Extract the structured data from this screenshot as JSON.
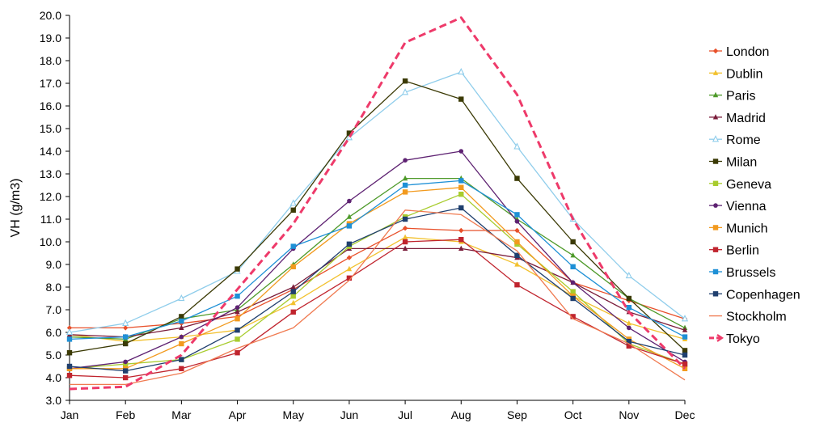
{
  "chart_data": {
    "type": "line",
    "title": "",
    "xlabel": "",
    "ylabel": "VH   (g/m3)",
    "ylim": [
      3.0,
      20.0
    ],
    "ytick_step": 1.0,
    "grid": false,
    "legend_position": "right",
    "categories": [
      "Jan",
      "Feb",
      "Mar",
      "Apr",
      "May",
      "Jun",
      "Jul",
      "Aug",
      "Sep",
      "Oct",
      "Nov",
      "Dec"
    ],
    "series": [
      {
        "name": "London",
        "color": "#E8502A",
        "marker": "diamond",
        "dashed": false,
        "values": [
          6.2,
          6.2,
          6.4,
          6.7,
          7.9,
          9.3,
          10.6,
          10.5,
          10.5,
          8.2,
          7.4,
          6.6
        ]
      },
      {
        "name": "Dublin",
        "color": "#F2C12E",
        "marker": "triangle",
        "dashed": false,
        "values": [
          5.9,
          5.6,
          5.8,
          6.1,
          7.3,
          8.8,
          10.2,
          10.0,
          9.0,
          7.6,
          6.4,
          5.7
        ]
      },
      {
        "name": "Paris",
        "color": "#4E9A2A",
        "marker": "triangle",
        "dashed": false,
        "values": [
          5.8,
          5.7,
          6.6,
          7.0,
          9.0,
          11.1,
          12.8,
          12.8,
          11.0,
          9.4,
          7.5,
          6.2
        ]
      },
      {
        "name": "Madrid",
        "color": "#7A1C3A",
        "marker": "triangle",
        "dashed": false,
        "values": [
          5.9,
          5.8,
          6.2,
          6.9,
          8.0,
          9.7,
          9.7,
          9.7,
          9.3,
          8.2,
          6.9,
          6.1
        ]
      },
      {
        "name": "Rome",
        "color": "#8FCDEB",
        "marker": "triangle-open",
        "dashed": false,
        "values": [
          6.0,
          6.4,
          7.5,
          8.7,
          11.7,
          14.6,
          16.6,
          17.5,
          14.2,
          11.0,
          8.5,
          6.6
        ]
      },
      {
        "name": "Milan",
        "color": "#3B3A05",
        "marker": "square",
        "dashed": false,
        "values": [
          5.1,
          5.5,
          6.7,
          8.8,
          11.4,
          14.8,
          17.1,
          16.3,
          12.8,
          10.0,
          7.5,
          5.2
        ]
      },
      {
        "name": "Geneva",
        "color": "#A8CC2E",
        "marker": "square",
        "dashed": false,
        "values": [
          4.4,
          4.6,
          4.8,
          5.7,
          7.6,
          9.8,
          11.1,
          12.1,
          9.9,
          7.8,
          5.5,
          4.6
        ]
      },
      {
        "name": "Vienna",
        "color": "#5E2272",
        "marker": "circle",
        "dashed": false,
        "values": [
          4.4,
          4.7,
          5.8,
          7.1,
          9.7,
          11.8,
          13.6,
          14.0,
          10.9,
          8.2,
          6.2,
          4.7
        ]
      },
      {
        "name": "Munich",
        "color": "#F29A1E",
        "marker": "square",
        "dashed": false,
        "values": [
          4.4,
          4.4,
          5.5,
          6.6,
          8.9,
          10.8,
          12.2,
          12.4,
          10.0,
          7.6,
          5.7,
          4.4
        ]
      },
      {
        "name": "Berlin",
        "color": "#C0242E",
        "marker": "square",
        "dashed": false,
        "values": [
          4.1,
          4.0,
          4.4,
          5.1,
          6.9,
          8.4,
          10.0,
          10.1,
          8.1,
          6.7,
          5.4,
          4.6
        ]
      },
      {
        "name": "Brussels",
        "color": "#1E90D6",
        "marker": "square",
        "dashed": false,
        "values": [
          5.7,
          5.8,
          6.5,
          7.6,
          9.8,
          10.7,
          12.5,
          12.7,
          11.2,
          8.9,
          7.1,
          5.8
        ]
      },
      {
        "name": "Copenhagen",
        "color": "#1F3F6E",
        "marker": "square",
        "dashed": false,
        "values": [
          4.5,
          4.3,
          4.8,
          6.1,
          7.8,
          9.9,
          11.0,
          11.5,
          9.4,
          7.5,
          5.6,
          5.0
        ]
      },
      {
        "name": "Stockholm",
        "color": "#F07A50",
        "marker": "none",
        "dashed": false,
        "values": [
          3.7,
          3.7,
          4.2,
          5.3,
          6.2,
          8.3,
          11.4,
          11.2,
          9.6,
          6.6,
          5.5,
          3.9
        ]
      },
      {
        "name": "Tokyo",
        "color": "#EE3A6A",
        "marker": "none",
        "dashed": true,
        "values": [
          3.5,
          3.6,
          5.0,
          7.9,
          10.8,
          14.6,
          18.8,
          19.9,
          16.5,
          11.0,
          6.9,
          4.4
        ]
      }
    ]
  }
}
